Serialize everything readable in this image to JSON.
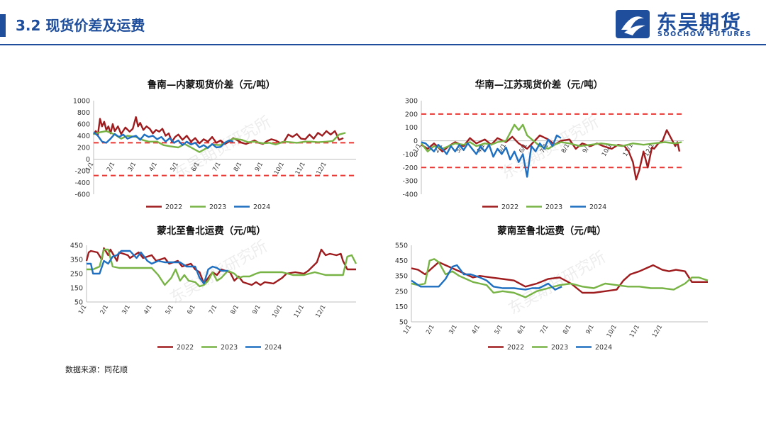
{
  "header": {
    "title": "3.2 现货价差及运费",
    "logo_cn": "东吴期货",
    "logo_en": "SOOCHOW FUTURES",
    "accent": "#1f4e9c"
  },
  "watermark": "东吴期货研究所",
  "source": "数据来源：同花顺",
  "colors": {
    "2022": "#9e1b1e",
    "2023": "#77b345",
    "2024": "#1f6fc0",
    "ref": "#e53935"
  },
  "chart_data": [
    {
      "type": "line",
      "title": "鲁南—内蒙现货价差（元/吨）",
      "x_ticks": [
        "1/1",
        "2/1",
        "3/1",
        "4/1",
        "5/1",
        "6/1",
        "7/1",
        "8/1",
        "9/1",
        "10/1",
        "11/1",
        "12/1"
      ],
      "ylim": [
        -600,
        1000
      ],
      "y_ticks": [
        -600,
        -400,
        -200,
        0,
        200,
        400,
        600,
        800,
        1000
      ],
      "ref_lines": [
        280,
        -280
      ],
      "grid": false,
      "legend_position": "bottom",
      "series": [
        {
          "name": "2022",
          "x": [
            0,
            0.1,
            0.2,
            0.3,
            0.4,
            0.5,
            0.6,
            0.7,
            0.8,
            0.9,
            1,
            1.15,
            1.3,
            1.5,
            1.7,
            1.85,
            2,
            2.1,
            2.2,
            2.35,
            2.5,
            2.65,
            2.8,
            2.95,
            3.1,
            3.25,
            3.4,
            3.55,
            3.7,
            3.85,
            4,
            4.2,
            4.4,
            4.6,
            4.8,
            5,
            5.2,
            5.4,
            5.6,
            5.8,
            6,
            6.2,
            6.4,
            6.6,
            6.8,
            7,
            7.2,
            7.4,
            7.6,
            7.8,
            8,
            8.2,
            8.4,
            8.6,
            8.8,
            9,
            9.2,
            9.4,
            9.6,
            9.8,
            10,
            10.2,
            10.4,
            10.6,
            10.8,
            11,
            11.2,
            11.4,
            11.6,
            11.8
          ],
          "values": [
            420,
            480,
            420,
            690,
            560,
            640,
            500,
            560,
            440,
            600,
            480,
            560,
            430,
            540,
            470,
            520,
            720,
            560,
            620,
            500,
            560,
            520,
            440,
            500,
            470,
            520,
            400,
            440,
            300,
            380,
            420,
            330,
            400,
            300,
            360,
            270,
            340,
            300,
            380,
            280,
            320,
            260,
            300,
            360,
            320,
            280,
            260,
            290,
            320,
            280,
            260,
            310,
            340,
            320,
            280,
            300,
            420,
            380,
            430,
            350,
            340,
            420,
            350,
            450,
            400,
            480,
            420,
            480,
            330,
            360
          ]
        },
        {
          "name": "2023",
          "x": [
            0,
            0.3,
            0.6,
            1,
            1.3,
            1.6,
            2,
            2.3,
            2.6,
            3,
            3.3,
            3.6,
            4,
            4.3,
            4.6,
            5,
            5.3,
            5.6,
            6,
            6.3,
            6.6,
            7,
            7.3,
            7.6,
            8,
            8.3,
            8.6,
            9,
            9.3,
            9.6,
            10,
            10.3,
            10.6,
            11,
            11.3,
            11.6,
            11.9
          ],
          "values": [
            430,
            460,
            480,
            420,
            350,
            400,
            380,
            330,
            300,
            300,
            240,
            220,
            200,
            260,
            200,
            120,
            180,
            250,
            240,
            300,
            350,
            330,
            290,
            300,
            270,
            280,
            250,
            300,
            290,
            280,
            300,
            300,
            290,
            300,
            310,
            420,
            450
          ]
        },
        {
          "name": "2024",
          "x": [
            0,
            0.2,
            0.4,
            0.6,
            0.8,
            1,
            1.2,
            1.4,
            1.6,
            1.8,
            2,
            2.2,
            2.4,
            2.6,
            2.8,
            3,
            3.2,
            3.4,
            3.6,
            3.8,
            4,
            4.2,
            4.4,
            4.6,
            4.8,
            5,
            5.2,
            5.4,
            5.6,
            5.8,
            6,
            6.2,
            6.4,
            6.6
          ],
          "values": [
            460,
            400,
            300,
            280,
            350,
            430,
            380,
            420,
            350,
            380,
            400,
            330,
            420,
            380,
            400,
            340,
            380,
            300,
            360,
            280,
            320,
            240,
            300,
            250,
            280,
            200,
            240,
            190,
            260,
            200,
            210,
            280,
            320,
            300
          ]
        }
      ]
    },
    {
      "type": "line",
      "title": "华南—江苏现货价差（元/吨）",
      "x_ticks": [
        "1/1",
        "2/1",
        "3/1",
        "4/1",
        "5/1",
        "6/1",
        "7/1",
        "8/1",
        "9/1",
        "10/1",
        "11/1",
        "12/1"
      ],
      "ylim": [
        -400,
        300
      ],
      "y_ticks": [
        -400,
        -300,
        -200,
        -100,
        0,
        100,
        200,
        300
      ],
      "ref_lines": [
        200,
        -200
      ],
      "grid": false,
      "legend_position": "bottom",
      "series": [
        {
          "name": "2022",
          "x": [
            0,
            0.3,
            0.6,
            1,
            1.3,
            1.6,
            2,
            2.3,
            2.6,
            3,
            3.3,
            3.6,
            4,
            4.3,
            4.6,
            5,
            5.3,
            5.6,
            6,
            6.3,
            6.6,
            7,
            7.3,
            7.6,
            8,
            8.3,
            8.6,
            9,
            9.3,
            9.6,
            9.8,
            10,
            10.15,
            10.3,
            10.5,
            10.7,
            10.9,
            11,
            11.2,
            11.4,
            11.5,
            11.6,
            11.8,
            12,
            12.1,
            12.2
          ],
          "values": [
            -30,
            -60,
            -20,
            -80,
            -40,
            -10,
            -40,
            20,
            -20,
            10,
            -30,
            20,
            -10,
            30,
            -20,
            -60,
            -10,
            40,
            10,
            -30,
            0,
            10,
            -60,
            -20,
            -40,
            -20,
            -40,
            -60,
            -30,
            -40,
            -80,
            -160,
            -290,
            -220,
            -80,
            -200,
            -50,
            -60,
            -20,
            0,
            40,
            80,
            20,
            -40,
            -10,
            -80
          ]
        },
        {
          "name": "2023",
          "x": [
            0,
            0.3,
            0.6,
            1,
            1.3,
            1.6,
            2,
            2.3,
            2.6,
            3,
            3.3,
            3.6,
            4,
            4.2,
            4.4,
            4.6,
            4.8,
            5,
            5.3,
            5.6,
            6,
            6.3,
            6.6,
            7,
            7.5,
            8,
            8.5,
            9,
            9.5,
            10,
            10.5,
            11,
            11.5,
            12,
            12.3
          ],
          "values": [
            -20,
            -80,
            -40,
            -60,
            -40,
            -20,
            -30,
            -10,
            -40,
            -20,
            -30,
            -10,
            0,
            60,
            120,
            80,
            120,
            40,
            0,
            -40,
            -60,
            -30,
            -10,
            -20,
            -40,
            -30,
            -20,
            -30,
            -40,
            -20,
            -30,
            -20,
            -10,
            -20,
            -10
          ]
        },
        {
          "name": "2024",
          "x": [
            0,
            0.2,
            0.4,
            0.6,
            0.8,
            1,
            1.2,
            1.4,
            1.6,
            1.8,
            2,
            2.2,
            2.4,
            2.6,
            2.8,
            3,
            3.2,
            3.4,
            3.6,
            3.8,
            4,
            4.2,
            4.4,
            4.6,
            4.8,
            5,
            5.2,
            5.4,
            5.6,
            5.8,
            6,
            6.2,
            6.4,
            6.6
          ],
          "values": [
            -10,
            -20,
            -50,
            -80,
            -30,
            -60,
            -100,
            -40,
            -80,
            -30,
            -70,
            -20,
            -60,
            -100,
            -40,
            -80,
            -30,
            -120,
            -60,
            -100,
            -50,
            -140,
            -80,
            -160,
            -100,
            -270,
            -40,
            -80,
            -20,
            -60,
            10,
            -40,
            40,
            20
          ]
        }
      ]
    },
    {
      "type": "line",
      "title": "蒙北至鲁北运费（元/吨）",
      "x_ticks": [
        "1/1",
        "2/1",
        "3/1",
        "4/1",
        "5/1",
        "6/1",
        "7/1",
        "8/1",
        "9/1",
        "10/1",
        "11/1",
        "12/1"
      ],
      "ylim": [
        50,
        450
      ],
      "y_ticks": [
        50,
        150,
        250,
        350,
        450
      ],
      "grid": false,
      "legend_position": "bottom",
      "series": [
        {
          "name": "2022",
          "x": [
            0,
            0.1,
            0.2,
            0.5,
            0.7,
            0.8,
            1,
            1.1,
            1.4,
            1.5,
            1.9,
            2,
            2.4,
            2.6,
            3,
            3.2,
            3.6,
            3.8,
            4.2,
            4.4,
            4.8,
            5,
            5.2,
            5.4,
            5.6,
            5.8,
            6,
            6.2,
            6.6,
            6.8,
            7,
            7.2,
            7.6,
            7.8,
            8,
            8.2,
            8.6,
            9,
            9.2,
            9.6,
            10,
            10.2,
            10.4,
            10.6,
            10.8,
            11,
            11.2,
            11.5,
            11.7,
            11.8,
            12,
            12.4
          ],
          "values": [
            340,
            400,
            410,
            400,
            350,
            430,
            380,
            420,
            340,
            400,
            380,
            360,
            400,
            360,
            380,
            340,
            360,
            320,
            340,
            300,
            320,
            280,
            260,
            180,
            220,
            260,
            240,
            280,
            260,
            200,
            230,
            190,
            170,
            190,
            170,
            190,
            180,
            220,
            250,
            260,
            250,
            270,
            300,
            330,
            420,
            380,
            390,
            380,
            390,
            340,
            280,
            280
          ]
        },
        {
          "name": "2023",
          "x": [
            0,
            0.3,
            0.6,
            0.8,
            1,
            1.2,
            1.5,
            2,
            2.5,
            3,
            3.3,
            3.6,
            3.9,
            4.1,
            4.3,
            4.5,
            4.7,
            5,
            5.2,
            5.4,
            5.6,
            5.8,
            6,
            6.2,
            6.5,
            6.8,
            7,
            7.2,
            7.5,
            7.8,
            8,
            8.5,
            9,
            9.5,
            10,
            10.5,
            11,
            11.5,
            11.8,
            12,
            12.2,
            12.4
          ],
          "values": [
            280,
            280,
            300,
            420,
            420,
            300,
            290,
            290,
            290,
            290,
            240,
            170,
            220,
            280,
            200,
            240,
            200,
            190,
            160,
            170,
            200,
            260,
            200,
            220,
            270,
            250,
            220,
            230,
            230,
            250,
            260,
            260,
            260,
            240,
            240,
            260,
            240,
            240,
            240,
            370,
            380,
            320
          ]
        },
        {
          "name": "2024",
          "x": [
            0,
            0.2,
            0.3,
            0.6,
            0.8,
            1,
            1.2,
            1.4,
            1.6,
            2,
            2.3,
            2.5,
            2.8,
            3,
            3.3,
            3.6,
            4,
            4.3,
            4.6,
            5,
            5.2,
            5.4,
            5.6,
            5.8,
            6,
            6.2,
            6.5
          ],
          "values": [
            320,
            320,
            250,
            250,
            340,
            320,
            370,
            380,
            410,
            410,
            360,
            400,
            340,
            320,
            340,
            330,
            330,
            330,
            300,
            300,
            220,
            180,
            280,
            300,
            290,
            270,
            270
          ]
        }
      ]
    },
    {
      "type": "line",
      "title": "蒙南至鲁北运费（元/吨）",
      "x_ticks": [
        "1/1",
        "2/1",
        "3/1",
        "4/1",
        "5/1",
        "6/1",
        "7/1",
        "8/1",
        "9/1",
        "10/1",
        "11/1",
        "12/1"
      ],
      "ylim": [
        50,
        550
      ],
      "y_ticks": [
        50,
        150,
        250,
        350,
        450,
        550
      ],
      "grid": false,
      "legend_position": "bottom",
      "series": [
        {
          "name": "2022",
          "x": [
            0,
            0.3,
            0.6,
            0.9,
            1.2,
            1.5,
            1.8,
            2.1,
            2.4,
            2.7,
            3,
            3.5,
            4,
            4.5,
            5,
            5.5,
            6,
            6.5,
            7,
            7.5,
            8,
            8.5,
            9,
            9.3,
            9.6,
            10,
            10.3,
            10.6,
            11,
            11.3,
            11.6,
            12,
            12.3,
            12.6,
            13
          ],
          "values": [
            400,
            390,
            360,
            400,
            440,
            420,
            400,
            380,
            360,
            340,
            350,
            340,
            330,
            320,
            280,
            300,
            330,
            340,
            300,
            240,
            240,
            250,
            260,
            320,
            360,
            380,
            400,
            420,
            390,
            380,
            390,
            380,
            310,
            310,
            310
          ]
        },
        {
          "name": "2023",
          "x": [
            0,
            0.3,
            0.6,
            0.8,
            1,
            1.2,
            1.5,
            1.8,
            2.1,
            2.4,
            2.7,
            3,
            3.3,
            3.6,
            4,
            4.5,
            5,
            5.5,
            6,
            6.5,
            7,
            7.5,
            8,
            8.5,
            9,
            9.5,
            10,
            10.5,
            11,
            11.5,
            12,
            12.3,
            12.6,
            13
          ],
          "values": [
            300,
            290,
            300,
            450,
            460,
            440,
            360,
            380,
            350,
            330,
            310,
            300,
            290,
            240,
            250,
            240,
            210,
            250,
            270,
            290,
            300,
            280,
            270,
            300,
            290,
            280,
            280,
            270,
            270,
            260,
            300,
            340,
            340,
            320
          ]
        },
        {
          "name": "2024",
          "x": [
            0,
            0.2,
            0.4,
            0.8,
            1.2,
            1.5,
            1.8,
            2,
            2.3,
            2.6,
            3,
            3.3,
            3.6,
            4,
            4.5,
            5,
            5.3,
            5.6,
            6,
            6.3,
            6.6
          ],
          "values": [
            320,
            300,
            280,
            280,
            280,
            330,
            410,
            420,
            360,
            360,
            340,
            320,
            280,
            270,
            270,
            260,
            270,
            270,
            300,
            260,
            280
          ]
        }
      ]
    }
  ]
}
